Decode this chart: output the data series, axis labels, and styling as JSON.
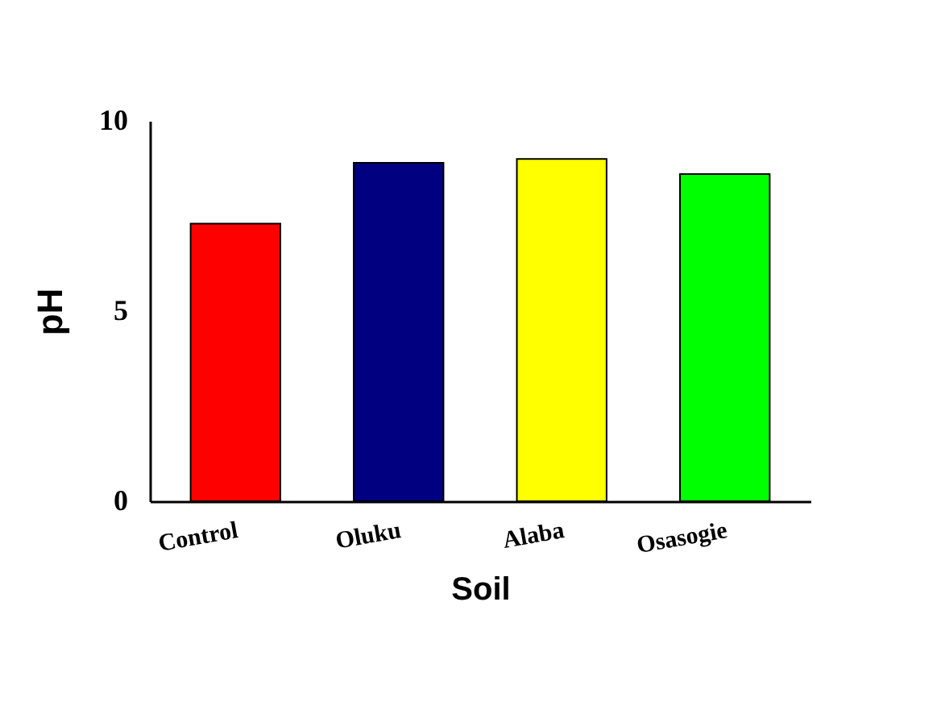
{
  "chart_data": {
    "type": "bar",
    "xlabel": "Soil",
    "ylabel": "pH",
    "categories": [
      "Control",
      "Oluku",
      "Alaba",
      "Osasogie"
    ],
    "values": [
      7.3,
      8.9,
      9.0,
      8.6
    ],
    "colors": [
      "#ff0000",
      "#000080",
      "#ffff00",
      "#00ff00"
    ],
    "ylim": [
      0,
      10
    ],
    "yticks": [
      0,
      5,
      10
    ],
    "grid": false
  }
}
